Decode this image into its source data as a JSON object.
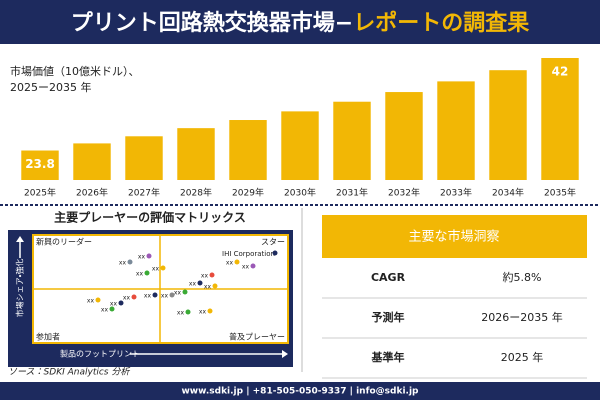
{
  "header": {
    "title_main": "プリント回路熱交換器市場−",
    "title_accent": "レポートの調査果"
  },
  "chart_data": {
    "type": "bar",
    "subtitle": [
      "市場価値（10億米ドル）、",
      "2025ー2035 年"
    ],
    "categories": [
      "2025年",
      "2026年",
      "2027年",
      "2028年",
      "2029年",
      "2030年",
      "2031年",
      "2032年",
      "2033年",
      "2034年",
      "2035年"
    ],
    "values": [
      23.8,
      25.2,
      26.6,
      28.2,
      29.8,
      31.5,
      33.4,
      35.3,
      37.4,
      39.6,
      42
    ],
    "value_labels": [
      "23.8",
      null,
      null,
      null,
      null,
      null,
      null,
      null,
      null,
      null,
      "42"
    ],
    "color": "#f2b705",
    "ylim": [
      18,
      42
    ]
  },
  "matrix": {
    "title": "主要プレーヤーの評価マトリックス",
    "quadrants": [
      "新興のリーダー",
      "スター",
      "参加者",
      "普及プレーヤー"
    ],
    "y_axis": "市場シェア・強化",
    "x_axis": "製品のフットプリント",
    "highlight": "IHI Corporation",
    "point_labels": [
      "xx",
      "xx",
      "xx",
      "xx",
      "xx",
      "xx",
      "xx",
      "xx",
      "xx",
      "xx",
      "xx",
      "xx",
      "xx",
      "xx",
      "xx",
      "xx",
      "xx",
      "xx"
    ]
  },
  "table": {
    "title": "主要な市場洞察",
    "rows": [
      [
        "CAGR",
        "約5.8%"
      ],
      [
        "予測年",
        "2026ー2035 年"
      ],
      [
        "基準年",
        "2025 年"
      ]
    ]
  },
  "source": "ソース：SDKI Analytics 分析",
  "footer": "www.sdki.jp | +81-505-050-9337 | info@sdki.jp"
}
